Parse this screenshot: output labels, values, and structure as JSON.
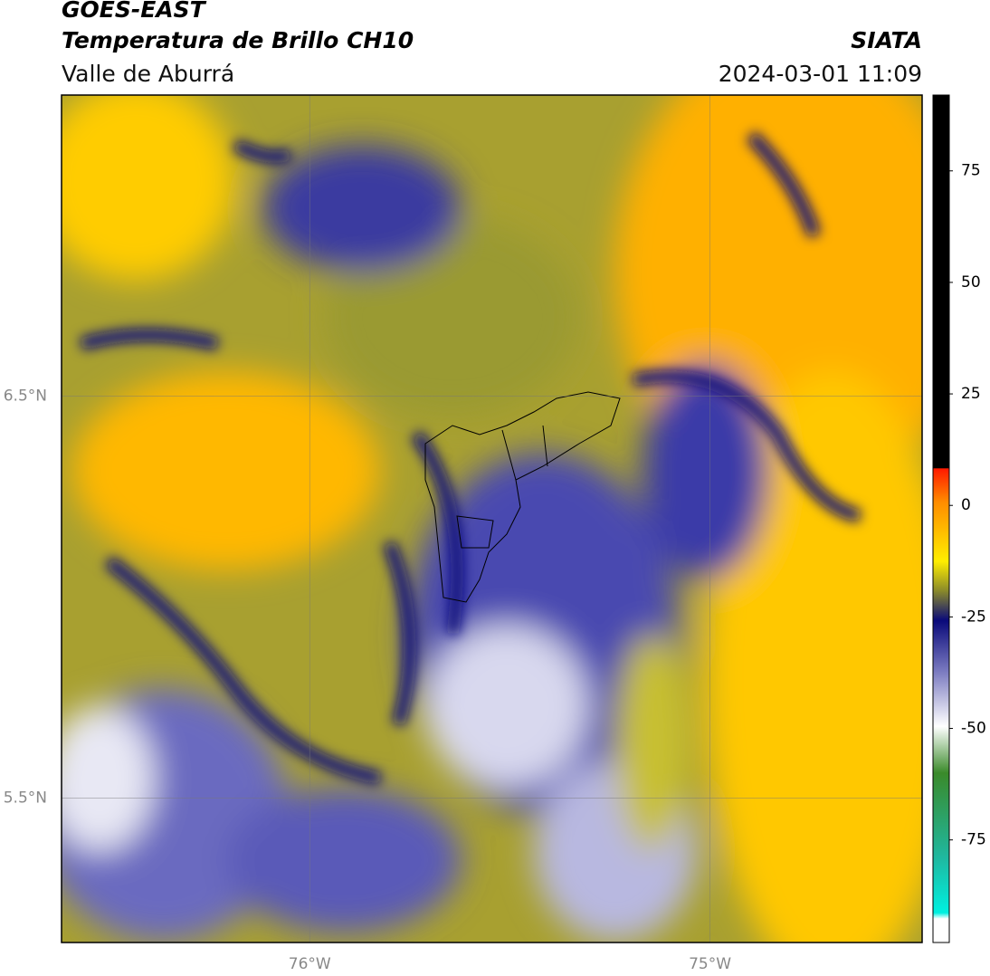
{
  "header": {
    "title": "GOES-EAST",
    "subtitle": "Temperatura de Brillo CH10",
    "region": "Valle de Aburrá",
    "source": "SIATA",
    "datetime": "2024-03-01 11:09"
  },
  "map": {
    "xlim": [
      -76.62,
      -74.47
    ],
    "ylim": [
      5.14,
      7.25
    ],
    "xticks": [
      {
        "value": -76,
        "label": "76°W"
      },
      {
        "value": -75,
        "label": "75°W"
      }
    ],
    "yticks": [
      {
        "value": 6.5,
        "label": "6.5°N"
      },
      {
        "value": 5.5,
        "label": "5.5°N"
      }
    ]
  },
  "colorbar": {
    "lim": [
      -98,
      92
    ],
    "ticks": [
      75,
      50,
      25,
      0,
      -25,
      -50,
      -75
    ]
  }
}
